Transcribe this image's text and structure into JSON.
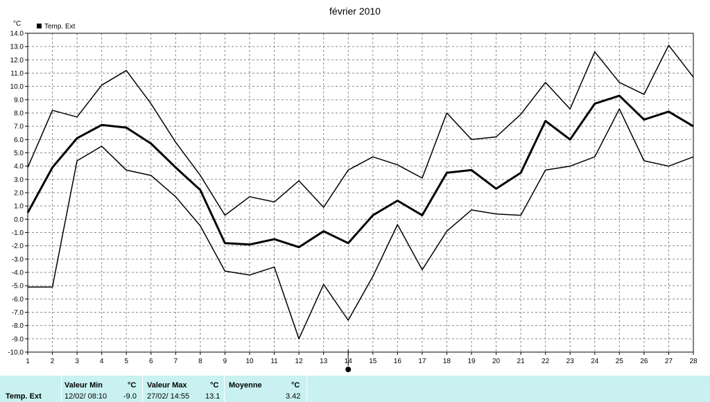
{
  "chart_data": {
    "type": "line",
    "title": "février 2010",
    "ylabel": "°C",
    "legend": {
      "entries": [
        "Temp. Ext"
      ],
      "placement": "top-left"
    },
    "grid": true,
    "xlim": [
      1,
      28
    ],
    "ylim": [
      -10,
      14
    ],
    "x": [
      1,
      2,
      3,
      4,
      5,
      6,
      7,
      8,
      9,
      10,
      11,
      12,
      13,
      14,
      15,
      16,
      17,
      18,
      19,
      20,
      21,
      22,
      23,
      24,
      25,
      26,
      27,
      28
    ],
    "y_ticks": [
      "14.0",
      "13.0",
      "12.0",
      "11.0",
      "10.0",
      "9.0",
      "8.0",
      "7.0",
      "6.0",
      "5.0",
      "4.0",
      "3.0",
      "2.0",
      "1.0",
      "0.0",
      "-1.0",
      "-2.0",
      "-3.0",
      "-4.0",
      "-5.0",
      "-6.0",
      "-7.0",
      "-8.0",
      "-9.0",
      "-10.0"
    ],
    "series": [
      {
        "role": "max",
        "values": [
          3.9,
          8.2,
          7.7,
          10.1,
          11.2,
          8.7,
          5.8,
          3.3,
          0.3,
          1.7,
          1.3,
          2.9,
          0.9,
          3.7,
          4.7,
          4.1,
          3.1,
          8.0,
          6.0,
          6.2,
          7.9,
          10.3,
          8.3,
          12.6,
          10.3,
          9.4,
          13.1,
          10.7
        ]
      },
      {
        "role": "mean",
        "values": [
          0.5,
          3.9,
          6.1,
          7.1,
          6.9,
          5.7,
          3.9,
          2.2,
          -1.8,
          -1.9,
          -1.5,
          -2.1,
          -0.9,
          -1.8,
          0.3,
          1.4,
          0.3,
          3.5,
          3.7,
          2.3,
          3.5,
          7.4,
          6.0,
          8.7,
          9.3,
          7.5,
          8.1,
          7.0
        ]
      },
      {
        "role": "min",
        "values": [
          -5.1,
          -5.1,
          4.4,
          5.5,
          3.7,
          3.3,
          1.7,
          -0.5,
          -3.9,
          -4.2,
          -3.6,
          -9.0,
          -4.9,
          -7.6,
          -4.3,
          -0.4,
          -3.8,
          -0.9,
          0.7,
          0.4,
          0.3,
          3.7,
          4.0,
          4.7,
          8.3,
          4.4,
          4.0,
          4.7
        ]
      }
    ],
    "marker": {
      "x": 14
    }
  },
  "stats": {
    "series_label": "Temp. Ext",
    "min": {
      "label": "Valeur Min",
      "unit": "°C",
      "date": "12/02/  08:10",
      "value": "-9.0"
    },
    "max": {
      "label": "Valeur Max",
      "unit": "°C",
      "date": "27/02/  14:55",
      "value": "13.1"
    },
    "mean": {
      "label": "Moyenne",
      "unit": "°C",
      "value": "3.42"
    }
  }
}
